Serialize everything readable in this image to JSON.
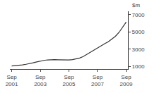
{
  "chart_data": {
    "type": "line",
    "ylabel": "$m",
    "categories": [
      "Sep\n2001",
      null,
      null,
      null,
      null,
      null,
      null,
      null,
      "Sep\n2003",
      null,
      null,
      null,
      null,
      null,
      null,
      null,
      "Sep\n2005",
      null,
      null,
      null,
      null,
      null,
      null,
      null,
      "Sep\n2007",
      null,
      null,
      null,
      null,
      null,
      null,
      null,
      "Sep\n2009"
    ],
    "values": [
      1050,
      1080,
      1120,
      1180,
      1250,
      1320,
      1420,
      1530,
      1630,
      1700,
      1760,
      1790,
      1790,
      1780,
      1760,
      1750,
      1760,
      1800,
      1870,
      1980,
      2150,
      2400,
      2680,
      2950,
      3200,
      3430,
      3640,
      3870,
      4150,
      4500,
      4950,
      5500,
      6150
    ],
    "color": "#333333",
    "ylim": [
      700,
      7400
    ],
    "yticks": [
      1000,
      3000,
      5000,
      7000
    ],
    "grid": false
  }
}
